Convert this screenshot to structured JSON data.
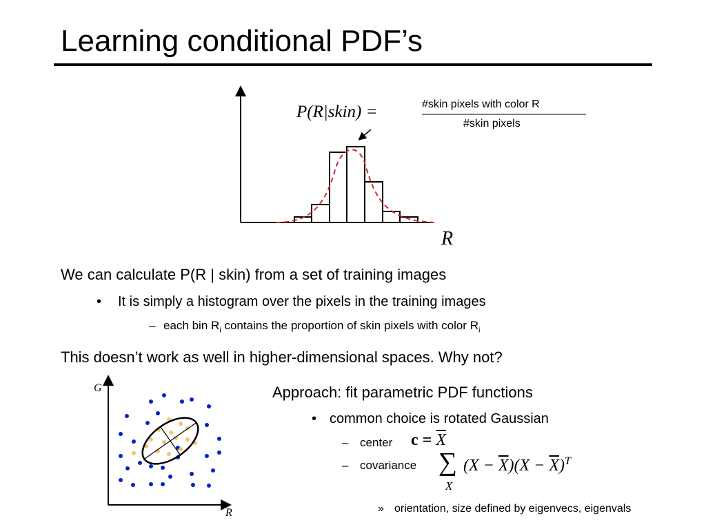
{
  "title": "Learning conditional PDF’s",
  "histogram": {
    "formula_lhs": "P(R|skin) =",
    "numerator": "#skin pixels with color R",
    "denominator": "#skin pixels",
    "x_axis_label": "R"
  },
  "body": {
    "line1": "We can calculate P(R | skin) from a set of training images",
    "bullet1": {
      "marker": "•",
      "text": "It is simply a histogram over the pixels in the training images"
    },
    "sub1": {
      "marker": "–",
      "parts": [
        "each bin R",
        "i",
        " contains the proportion of skin pixels with color R",
        "i"
      ]
    },
    "line2": "This doesn’t work as well in higher-dimensional spaces.  Why not?"
  },
  "scatter": {
    "y_axis_label": "G",
    "x_axis_label": "R"
  },
  "approach": {
    "heading": "Approach:  fit parametric PDF functions",
    "bullet": {
      "marker": "•",
      "text": "common choice is rotated Gaussian"
    },
    "center": {
      "marker": "–",
      "text": "center",
      "math": [
        "c = ",
        "X"
      ]
    },
    "covariance": {
      "marker": "–",
      "text": "covariance",
      "sum": "∑",
      "sum_index": "X",
      "math": [
        "(X − ",
        "X",
        ")(X − ",
        "X",
        ")",
        "T"
      ]
    },
    "note": {
      "marker": "»",
      "text": "orientation, size defined by eigenvecs, eigenvals"
    }
  }
}
